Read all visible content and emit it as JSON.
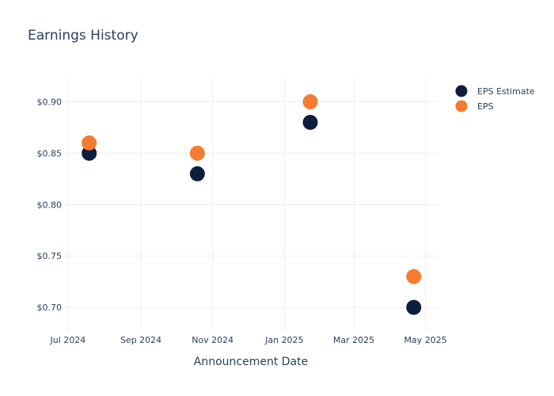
{
  "chart_data": {
    "type": "scatter",
    "title": "Earnings History",
    "xlabel": "Announcement Date",
    "ylabel": "",
    "x_ticks": [
      "Jul 2024",
      "Sep 2024",
      "Nov 2024",
      "Jan 2025",
      "Mar 2025",
      "May 2025"
    ],
    "x_tick_dates": [
      "2024-07-01",
      "2024-09-01",
      "2024-11-01",
      "2025-01-01",
      "2025-03-01",
      "2025-05-01"
    ],
    "x_range": [
      "2024-06-27",
      "2025-05-12"
    ],
    "y_ticks": [
      0.7,
      0.75,
      0.8,
      0.85,
      0.9
    ],
    "y_tick_labels": [
      "$0.70",
      "$0.75",
      "$0.80",
      "$0.85",
      "$0.90"
    ],
    "ylim": [
      0.677,
      0.922
    ],
    "grid": true,
    "legend_position": "top-right",
    "series": [
      {
        "name": "EPS Estimate",
        "color": "#0d1f3c",
        "points": [
          {
            "date": "2024-07-19",
            "value": 0.85
          },
          {
            "date": "2024-10-19",
            "value": 0.83
          },
          {
            "date": "2025-01-23",
            "value": 0.88
          },
          {
            "date": "2025-04-21",
            "value": 0.7
          }
        ]
      },
      {
        "name": "EPS",
        "color": "#f47c30",
        "points": [
          {
            "date": "2024-07-19",
            "value": 0.86
          },
          {
            "date": "2024-10-19",
            "value": 0.85
          },
          {
            "date": "2025-01-23",
            "value": 0.9
          },
          {
            "date": "2025-04-21",
            "value": 0.73
          }
        ]
      }
    ]
  }
}
